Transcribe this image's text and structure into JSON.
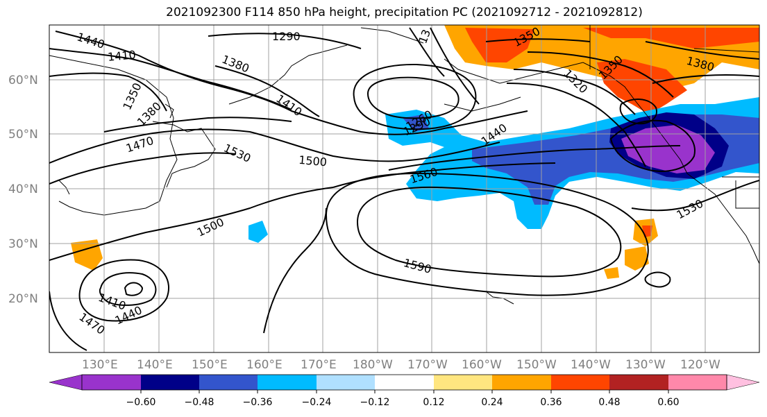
{
  "title": "2021092300 F114 850 hPa height, precipitation PC (2021092712 - 2021092812)",
  "map": {
    "lat_labels": [
      "60°N",
      "50°N",
      "40°N",
      "30°N",
      "20°N"
    ],
    "lon_labels": [
      "130°E",
      "140°E",
      "150°E",
      "160°E",
      "170°E",
      "180°W",
      "170°W",
      "160°W",
      "150°W",
      "140°W",
      "130°W",
      "120°W"
    ],
    "contour_labels": [
      "1440",
      "1410",
      "1350",
      "1380",
      "1470",
      "1290",
      "1380",
      "1410",
      "1530",
      "1500",
      "1260",
      "1290",
      "1440",
      "1560",
      "1350",
      "1320",
      "1380",
      "1350",
      "1500",
      "1590",
      "1530",
      "1410",
      "1440",
      "1470",
      "13"
    ],
    "contour_color": "#000000",
    "grid": true
  },
  "colorbar": {
    "ticks": [
      "−0.60",
      "−0.48",
      "−0.36",
      "−0.24",
      "−0.12",
      "0.12",
      "0.24",
      "0.36",
      "0.48",
      "0.60"
    ],
    "colors": [
      "#9933cc",
      "#000088",
      "#3355cc",
      "#00bbff",
      "#b0e0ff",
      "#ffffff",
      "#ffe680",
      "#ffa500",
      "#ff4500",
      "#b22222",
      "#ff88aa",
      "#ffc0e0"
    ],
    "extend": "both"
  }
}
